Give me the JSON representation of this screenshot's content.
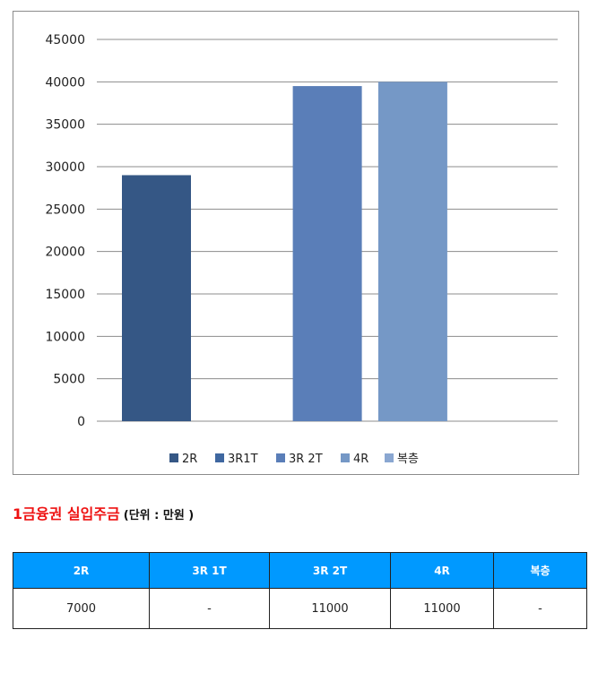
{
  "chart_data": {
    "type": "bar",
    "ylim": [
      0,
      45000
    ],
    "yticks": [
      "0",
      "5000",
      "10000",
      "15000",
      "20000",
      "25000",
      "30000",
      "35000",
      "40000",
      "45000"
    ],
    "grid": true,
    "legend_position": "bottom",
    "series": [
      {
        "name": "2R",
        "value": 29000,
        "color": "#355785",
        "slot": 0
      },
      {
        "name": "3R1T",
        "value": null,
        "color": "#3f67a0",
        "slot": 1
      },
      {
        "name": "3R 2T",
        "value": 39500,
        "color": "#5a7eb8",
        "slot": 2
      },
      {
        "name": "4R",
        "value": 40000,
        "color": "#7598c6",
        "slot": 3
      },
      {
        "name": "복층",
        "value": null,
        "color": "#8aa7d1",
        "slot": 4
      }
    ]
  },
  "section": {
    "title": "1금융권 실입주금",
    "unit": "(단위 : 만원 )"
  },
  "table": {
    "headers": [
      "2R",
      "3R 1T",
      "3R 2T",
      "4R",
      "복층"
    ],
    "values": [
      "7000",
      "-",
      "11000",
      "11000",
      "-"
    ],
    "header_color": "#0099ff"
  }
}
